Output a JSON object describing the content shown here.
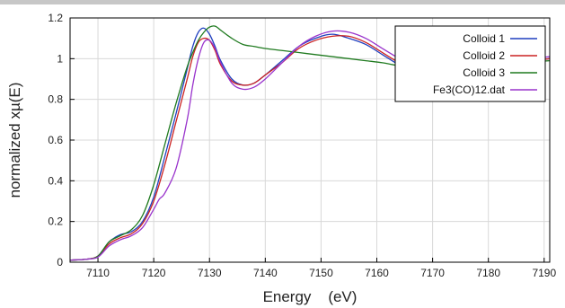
{
  "chart_data": {
    "type": "line",
    "title": "",
    "xlabel": "Energy    (eV)",
    "ylabel": "normalized xµ(E)",
    "xlim": [
      7105,
      7191
    ],
    "ylim": [
      0,
      1.2
    ],
    "xticks": [
      7110,
      7120,
      7130,
      7140,
      7150,
      7160,
      7170,
      7180,
      7190
    ],
    "yticks": [
      0,
      0.2,
      0.4,
      0.6,
      0.8,
      1,
      1.2
    ],
    "grid": true,
    "legend_position": "top-right",
    "series": [
      {
        "name": "Colloid 1",
        "color": "#1f3fbf",
        "x": [
          7105,
          7108,
          7110,
          7112,
          7114,
          7116,
          7118,
          7120,
          7122,
          7124,
          7126,
          7127,
          7128,
          7129,
          7130,
          7131,
          7132,
          7134,
          7136,
          7138,
          7140,
          7143,
          7146,
          7149,
          7152,
          7155,
          7158,
          7161,
          7164,
          7167,
          7170,
          7173,
          7176,
          7179,
          7182,
          7185,
          7188,
          7191
        ],
        "y": [
          0.01,
          0.015,
          0.03,
          0.1,
          0.135,
          0.15,
          0.2,
          0.32,
          0.52,
          0.73,
          0.95,
          1.06,
          1.13,
          1.15,
          1.12,
          1.06,
          0.99,
          0.9,
          0.87,
          0.88,
          0.92,
          0.99,
          1.06,
          1.1,
          1.12,
          1.1,
          1.07,
          1.02,
          0.97,
          0.94,
          0.93,
          0.94,
          0.95,
          0.96,
          0.97,
          0.98,
          0.99,
          1.0
        ]
      },
      {
        "name": "Colloid 2",
        "color": "#cc2222",
        "x": [
          7105,
          7108,
          7110,
          7112,
          7114,
          7116,
          7118,
          7120,
          7122,
          7124,
          7126,
          7127,
          7128,
          7129,
          7130,
          7131,
          7132,
          7134,
          7136,
          7138,
          7140,
          7143,
          7146,
          7149,
          7152,
          7155,
          7158,
          7161,
          7164,
          7167,
          7170,
          7173,
          7176,
          7179,
          7182,
          7185,
          7188,
          7191
        ],
        "y": [
          0.01,
          0.015,
          0.03,
          0.09,
          0.12,
          0.14,
          0.19,
          0.3,
          0.48,
          0.69,
          0.9,
          1.01,
          1.08,
          1.1,
          1.09,
          1.04,
          0.97,
          0.89,
          0.87,
          0.88,
          0.92,
          0.98,
          1.05,
          1.09,
          1.11,
          1.11,
          1.08,
          1.03,
          0.98,
          0.94,
          0.92,
          0.93,
          0.95,
          0.96,
          0.97,
          0.98,
          0.99,
          1.0
        ]
      },
      {
        "name": "Colloid 3",
        "color": "#1f7a1f",
        "x": [
          7105,
          7108,
          7110,
          7112,
          7114,
          7116,
          7118,
          7120,
          7122,
          7124,
          7126,
          7127,
          7128,
          7129,
          7130,
          7131,
          7132,
          7134,
          7136,
          7138,
          7140,
          7143,
          7146,
          7149,
          7152,
          7155,
          7158,
          7161,
          7164,
          7167,
          7170,
          7173,
          7176,
          7179,
          7182,
          7185,
          7188,
          7191
        ],
        "y": [
          0.01,
          0.015,
          0.03,
          0.1,
          0.13,
          0.16,
          0.23,
          0.38,
          0.58,
          0.78,
          0.96,
          1.03,
          1.09,
          1.13,
          1.155,
          1.16,
          1.14,
          1.1,
          1.07,
          1.06,
          1.05,
          1.04,
          1.03,
          1.02,
          1.01,
          1.0,
          0.99,
          0.98,
          0.965,
          0.955,
          0.945,
          0.945,
          0.95,
          0.96,
          0.97,
          0.98,
          0.985,
          0.99
        ]
      },
      {
        "name": "Fe3(CO)12.dat",
        "color": "#9933cc",
        "x": [
          7105,
          7108,
          7110,
          7112,
          7114,
          7116,
          7118,
          7120,
          7121,
          7122,
          7124,
          7126,
          7127,
          7128,
          7129,
          7130,
          7131,
          7132,
          7134,
          7136,
          7138,
          7140,
          7143,
          7146,
          7149,
          7152,
          7155,
          7158,
          7161,
          7164,
          7167,
          7170,
          7173,
          7176,
          7179,
          7182,
          7185,
          7188,
          7191
        ],
        "y": [
          0.01,
          0.015,
          0.025,
          0.08,
          0.11,
          0.13,
          0.17,
          0.26,
          0.31,
          0.34,
          0.46,
          0.7,
          0.87,
          1.0,
          1.08,
          1.09,
          1.05,
          0.98,
          0.88,
          0.85,
          0.86,
          0.9,
          0.98,
          1.06,
          1.11,
          1.135,
          1.13,
          1.1,
          1.05,
          1.0,
          0.95,
          0.92,
          0.91,
          0.93,
          0.95,
          0.97,
          0.99,
          1.0,
          1.01
        ]
      }
    ]
  }
}
